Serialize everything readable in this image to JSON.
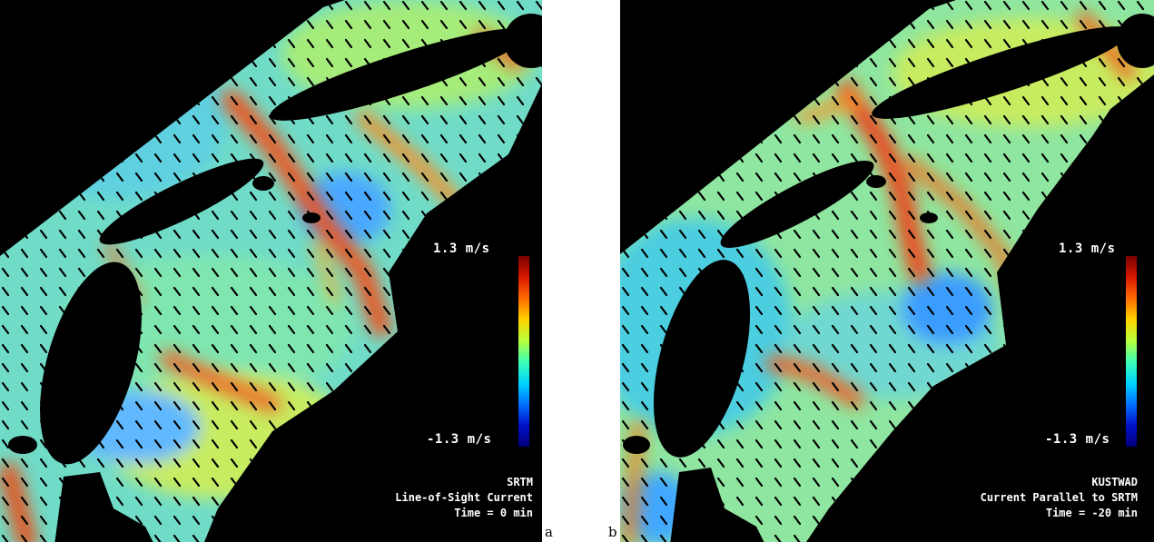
{
  "panels": [
    {
      "id": "a",
      "letter": "a",
      "scale_max": "1.3 m/s",
      "scale_min": "-1.3 m/s",
      "caption": [
        "SRTM",
        "Line-of-Sight Current",
        "Time = 0 min"
      ]
    },
    {
      "id": "b",
      "letter": "b",
      "scale_max": "1.3 m/s",
      "scale_min": "-1.3 m/s",
      "caption": [
        "KUSTWAD",
        "Current Parallel to SRTM",
        "Time = -20 min"
      ]
    }
  ],
  "colors": {
    "background": "#000000",
    "field_base": "#6fe0c0",
    "field_high": "#e8401a",
    "field_low": "#1e90ff"
  }
}
